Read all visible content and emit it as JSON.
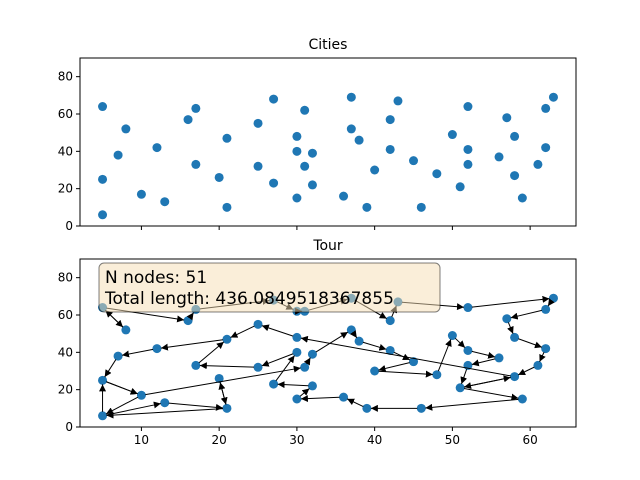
{
  "colors": {
    "point": "#1f77b4",
    "arrow": "#000000",
    "info_box": "#f5deb3"
  },
  "chart_data": [
    {
      "type": "scatter",
      "title": "Cities",
      "xlim": [
        2.1,
        65.9
      ],
      "ylim": [
        0,
        90
      ],
      "xticks": [
        10,
        20,
        30,
        40,
        50,
        60
      ],
      "yticks": [
        0,
        20,
        40,
        60,
        80
      ],
      "show_xtick_labels": false,
      "grid": false,
      "points": [
        [
          5,
          64
        ],
        [
          5,
          25
        ],
        [
          5,
          6
        ],
        [
          7,
          38
        ],
        [
          8,
          52
        ],
        [
          10,
          17
        ],
        [
          12,
          42
        ],
        [
          13,
          13
        ],
        [
          16,
          57
        ],
        [
          17,
          63
        ],
        [
          17,
          33
        ],
        [
          20,
          26
        ],
        [
          21,
          47
        ],
        [
          21,
          10
        ],
        [
          25,
          55
        ],
        [
          25,
          32
        ],
        [
          27,
          68
        ],
        [
          27,
          23
        ],
        [
          30,
          48
        ],
        [
          30,
          40
        ],
        [
          30,
          15
        ],
        [
          31,
          62
        ],
        [
          31,
          32
        ],
        [
          32,
          39
        ],
        [
          32,
          22
        ],
        [
          36,
          16
        ],
        [
          37,
          69
        ],
        [
          37,
          52
        ],
        [
          38,
          46
        ],
        [
          39,
          10
        ],
        [
          40,
          30
        ],
        [
          42,
          57
        ],
        [
          42,
          41
        ],
        [
          43,
          67
        ],
        [
          45,
          35
        ],
        [
          46,
          10
        ],
        [
          48,
          28
        ],
        [
          50,
          49
        ],
        [
          51,
          21
        ],
        [
          52,
          64
        ],
        [
          52,
          41
        ],
        [
          52,
          33
        ],
        [
          56,
          37
        ],
        [
          57,
          58
        ],
        [
          58,
          48
        ],
        [
          58,
          27
        ],
        [
          59,
          15
        ],
        [
          61,
          33
        ],
        [
          62,
          63
        ],
        [
          62,
          42
        ],
        [
          63,
          69
        ]
      ]
    },
    {
      "type": "line",
      "title": "Tour",
      "xlim": [
        2.1,
        65.9
      ],
      "ylim": [
        0,
        90
      ],
      "xticks": [
        10,
        20,
        30,
        40,
        50,
        60
      ],
      "yticks": [
        0,
        20,
        40,
        60,
        80
      ],
      "show_xtick_labels": true,
      "grid": false,
      "annotation": {
        "lines": [
          "N nodes: 51",
          "Total length: 436.0849518367855"
        ],
        "placement": "top-left"
      },
      "tour": [
        [
          5,
          64
        ],
        [
          8,
          52
        ],
        [
          5,
          64
        ],
        [
          16,
          57
        ],
        [
          17,
          63
        ],
        [
          27,
          68
        ],
        [
          30,
          62
        ],
        [
          31,
          62
        ],
        [
          37,
          69
        ],
        [
          42,
          57
        ],
        [
          43,
          67
        ],
        [
          52,
          64
        ],
        [
          63,
          69
        ],
        [
          62,
          63
        ],
        [
          57,
          58
        ],
        [
          58,
          48
        ],
        [
          62,
          42
        ],
        [
          61,
          33
        ],
        [
          58,
          27
        ],
        [
          51,
          21
        ],
        [
          59,
          15
        ],
        [
          46,
          10
        ],
        [
          39,
          10
        ],
        [
          36,
          16
        ],
        [
          30,
          15
        ],
        [
          32,
          22
        ],
        [
          27,
          23
        ],
        [
          30,
          40
        ],
        [
          25,
          32
        ],
        [
          17,
          33
        ],
        [
          21,
          47
        ],
        [
          12,
          42
        ],
        [
          7,
          38
        ],
        [
          5,
          25
        ],
        [
          10,
          17
        ],
        [
          5,
          6
        ],
        [
          13,
          13
        ],
        [
          21,
          10
        ],
        [
          20,
          26
        ],
        [
          21,
          10
        ],
        [
          5,
          6
        ],
        [
          5,
          25
        ],
        [
          10,
          17
        ],
        [
          31,
          32
        ],
        [
          32,
          39
        ],
        [
          37,
          52
        ],
        [
          38,
          46
        ],
        [
          42,
          41
        ],
        [
          45,
          35
        ],
        [
          40,
          30
        ],
        [
          48,
          28
        ],
        [
          50,
          49
        ],
        [
          52,
          41
        ],
        [
          56,
          37
        ],
        [
          52,
          33
        ],
        [
          51,
          21
        ],
        [
          58,
          27
        ],
        [
          30,
          48
        ],
        [
          25,
          55
        ],
        [
          21,
          47
        ]
      ]
    }
  ]
}
